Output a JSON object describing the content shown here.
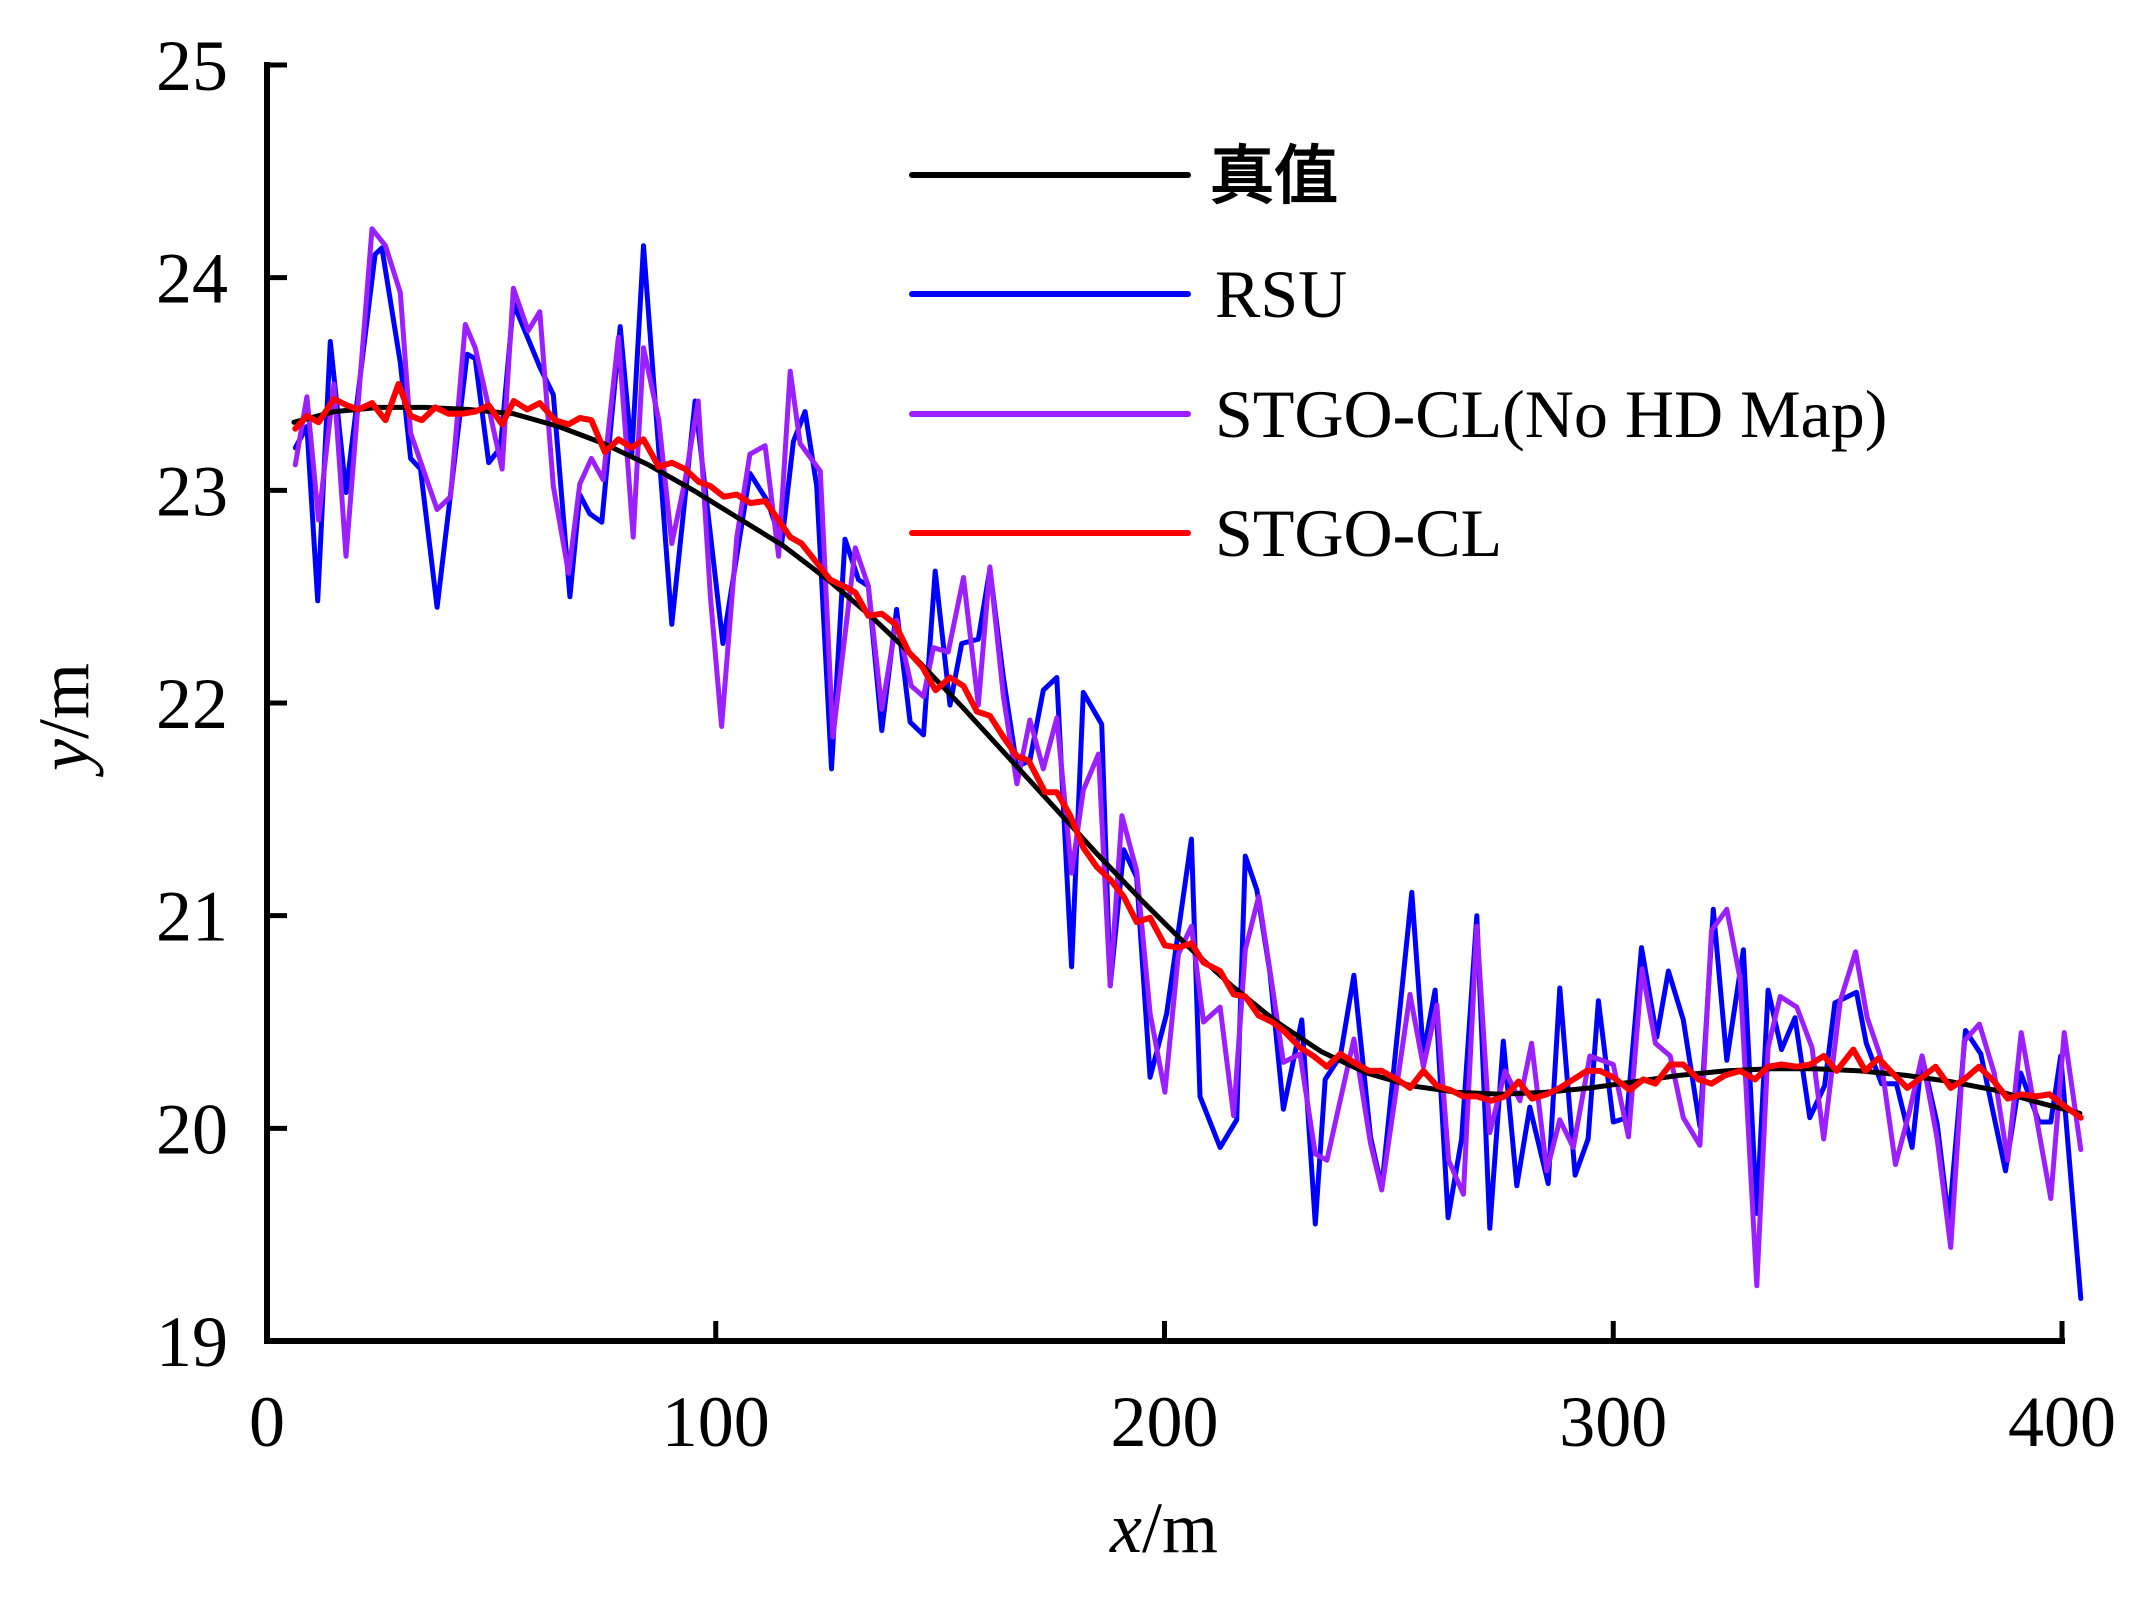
{
  "chart_data": {
    "type": "line",
    "title": "",
    "xlabel": {
      "var": "x",
      "unit": "/m"
    },
    "ylabel": {
      "var": "y",
      "unit": "/m"
    },
    "xlim": [
      0,
      400
    ],
    "ylim": [
      19,
      25
    ],
    "xticks": [
      "0",
      "100",
      "200",
      "300",
      "400"
    ],
    "xtick_values": [
      0,
      100,
      200,
      300,
      400
    ],
    "yticks": [
      "19",
      "20",
      "21",
      "22",
      "23",
      "24",
      "25"
    ],
    "ytick_values": [
      19,
      20,
      21,
      22,
      23,
      24,
      25
    ],
    "grid": false,
    "legend_position": "top-right",
    "legend": [
      "真值",
      "RSU",
      "STGO-CL(No HD Map)",
      "STGO-CL"
    ],
    "series": [
      {
        "name": "真值",
        "color": "#000000",
        "x": [
          6,
          15,
          25,
          35,
          45,
          55,
          65,
          75,
          85,
          95,
          105,
          115,
          125,
          135,
          145,
          155,
          165,
          175,
          185,
          195,
          205,
          215,
          225,
          235,
          245,
          255,
          265,
          275,
          285,
          295,
          305,
          315,
          325,
          335,
          345,
          355,
          365,
          375,
          385,
          395,
          404
        ],
        "y": [
          23.32,
          23.37,
          23.39,
          23.39,
          23.38,
          23.36,
          23.3,
          23.22,
          23.12,
          23.0,
          22.87,
          22.74,
          22.58,
          22.4,
          22.2,
          21.98,
          21.75,
          21.52,
          21.29,
          21.07,
          20.86,
          20.67,
          20.5,
          20.36,
          20.26,
          20.2,
          20.17,
          20.16,
          20.17,
          20.19,
          20.22,
          20.25,
          20.27,
          20.28,
          20.28,
          20.27,
          20.25,
          20.22,
          20.18,
          20.12,
          20.07
        ]
      },
      {
        "name": "RSU",
        "color": "#0000ff",
        "x": [
          6.3,
          8.9,
          11.3,
          14.1,
          17.6,
          24.1,
          25.6,
          29.7,
          32,
          34.2,
          37.9,
          40.9,
          44.6,
          46.4,
          49.4,
          52,
          54.9,
          60.8,
          63.8,
          67.5,
          69.7,
          71.9,
          74.6,
          78.7,
          81.3,
          83.9,
          90.2,
          95.4,
          101.6,
          107.6,
          111.5,
          114.7,
          117.3,
          119.9,
          122.5,
          125.8,
          128.8,
          131.8,
          134,
          137,
          140.3,
          143.3,
          146.3,
          148.9,
          152.2,
          154.8,
          158.5,
          161.1,
          164.1,
          167.1,
          170,
          173,
          176,
          179.3,
          181.9,
          186,
          187.9,
          190.9,
          193.8,
          196.8,
          200.5,
          206,
          207.9,
          212.4,
          216.1,
          218,
          220.6,
          223.5,
          226.5,
          230.6,
          233.6,
          235.8,
          239.2,
          242.2,
          245.9,
          248.4,
          255.1,
          257.7,
          260.3,
          263.2,
          266.2,
          269.6,
          272.5,
          275.5,
          278.5,
          281.4,
          285.5,
          288.1,
          291.5,
          294.4,
          296.7,
          300,
          303,
          306.3,
          309.7,
          312.3,
          315.6,
          319.3,
          322.3,
          325.3,
          329,
          332,
          334.5,
          337.5,
          340.5,
          343.8,
          347.1,
          349.4,
          354.2,
          356.4,
          359.8,
          363.1,
          366.6,
          368.8,
          372.2,
          374.8,
          378.5,
          381.9,
          387.4,
          390.8,
          394.9,
          397.5,
          399.7,
          404.2
        ],
        "y": [
          23.2,
          23.3,
          22.48,
          23.7,
          22.99,
          24.11,
          24.14,
          23.6,
          23.15,
          23.1,
          22.45,
          22.98,
          23.64,
          23.62,
          23.13,
          23.2,
          23.88,
          23.58,
          23.45,
          22.5,
          22.98,
          22.89,
          22.85,
          23.77,
          23.17,
          24.15,
          22.37,
          23.42,
          22.28,
          23.08,
          22.95,
          22.75,
          23.23,
          23.37,
          23.02,
          21.69,
          22.77,
          22.58,
          22.55,
          21.87,
          22.44,
          21.91,
          21.85,
          22.62,
          21.99,
          22.28,
          22.3,
          22.63,
          22.12,
          21.7,
          21.73,
          22.06,
          22.12,
          20.76,
          22.05,
          21.9,
          20.67,
          21.31,
          21.18,
          20.24,
          20.54,
          21.36,
          20.15,
          19.91,
          20.04,
          21.28,
          21.12,
          20.73,
          20.09,
          20.51,
          19.55,
          20.23,
          20.34,
          20.72,
          19.96,
          19.72,
          21.11,
          20.35,
          20.65,
          19.58,
          19.95,
          21.0,
          19.53,
          20.41,
          19.73,
          20.1,
          19.74,
          20.66,
          19.78,
          19.95,
          20.6,
          20.03,
          20.05,
          20.85,
          20.43,
          20.74,
          20.51,
          20.01,
          21.03,
          20.32,
          20.84,
          19.6,
          20.65,
          20.37,
          20.52,
          20.05,
          20.2,
          20.59,
          20.64,
          20.4,
          20.21,
          20.21,
          19.91,
          20.34,
          20.02,
          19.56,
          20.46,
          20.35,
          19.8,
          20.26,
          20.03,
          20.03,
          20.34,
          19.2
        ]
      },
      {
        "name": "STGO-CL(No HD Map)",
        "color": "#9b1fff",
        "x": [
          6.3,
          8.9,
          11.5,
          14.9,
          17.6,
          23.4,
          26.4,
          29.7,
          32,
          37.9,
          40.9,
          44.2,
          46.4,
          49.4,
          52.4,
          54.9,
          58.2,
          60.8,
          63.8,
          67.2,
          69.7,
          72.3,
          74.9,
          78.3,
          81.6,
          83.9,
          87.3,
          90.2,
          93.2,
          96.1,
          98.8,
          101.3,
          104.7,
          107.6,
          111,
          114,
          116.6,
          118.8,
          123.3,
          126.1,
          131.1,
          134,
          137,
          140.3,
          143.6,
          146.3,
          148.5,
          151.8,
          155.2,
          158.5,
          161.1,
          164.1,
          167.1,
          170,
          173,
          176,
          179.3,
          181.9,
          185.3,
          187.9,
          190.5,
          193.8,
          196.8,
          200.1,
          203.1,
          206,
          208.7,
          212.4,
          215.4,
          218,
          221,
          224,
          226.5,
          230.2,
          233.6,
          236.2,
          242.2,
          245.9,
          248.4,
          254.7,
          257.7,
          260.7,
          263.3,
          266.6,
          269.6,
          272.5,
          275.9,
          279.2,
          281.8,
          285.2,
          288.1,
          291.1,
          294.8,
          300,
          303.4,
          306.4,
          309.4,
          312.7,
          315.6,
          319.3,
          321.9,
          325.3,
          328.3,
          332,
          334.5,
          337.2,
          340.9,
          344.3,
          346.9,
          350.6,
          354,
          356.6,
          359.5,
          362.9,
          365.9,
          368.8,
          372.2,
          375.2,
          378.2,
          381.6,
          384.9,
          387.9,
          390.9,
          394.2,
          397.5,
          400.5,
          404.2
        ],
        "y": [
          23.12,
          23.44,
          22.86,
          23.5,
          22.69,
          24.23,
          24.15,
          23.93,
          23.27,
          22.91,
          22.97,
          23.78,
          23.67,
          23.39,
          23.1,
          23.95,
          23.75,
          23.84,
          23.02,
          22.61,
          23.03,
          23.15,
          23.05,
          23.72,
          22.78,
          23.67,
          23.33,
          22.75,
          23.05,
          23.42,
          22.5,
          21.89,
          22.78,
          23.17,
          23.21,
          22.69,
          23.56,
          23.22,
          23.09,
          21.84,
          22.73,
          22.55,
          21.97,
          22.39,
          22.08,
          22.03,
          22.26,
          22.24,
          22.59,
          21.99,
          22.64,
          22.03,
          21.62,
          21.92,
          21.69,
          21.93,
          21.2,
          21.59,
          21.76,
          20.67,
          21.47,
          21.21,
          20.54,
          20.17,
          20.82,
          20.95,
          20.5,
          20.57,
          20.06,
          20.84,
          21.09,
          20.67,
          20.31,
          20.35,
          19.88,
          19.85,
          20.42,
          19.93,
          19.71,
          20.63,
          20.29,
          20.58,
          19.85,
          19.69,
          20.95,
          19.98,
          20.27,
          20.13,
          20.4,
          19.8,
          20.04,
          19.91,
          20.34,
          20.3,
          19.96,
          20.75,
          20.4,
          20.34,
          20.05,
          19.92,
          20.93,
          21.03,
          20.7,
          19.26,
          20.38,
          20.62,
          20.57,
          20.38,
          19.95,
          20.6,
          20.83,
          20.52,
          20.34,
          19.83,
          20.07,
          20.34,
          19.95,
          19.44,
          20.41,
          20.49,
          20.26,
          19.85,
          20.45,
          20.06,
          19.67,
          20.45,
          19.9
        ]
      },
      {
        "name": "STGO-CL",
        "color": "#ff0000",
        "x": [
          6.3,
          8.9,
          11.5,
          14.9,
          17.8,
          20.4,
          23.4,
          26.4,
          29.3,
          32,
          34.5,
          37.5,
          40.5,
          43.5,
          46.4,
          49.4,
          52.4,
          55,
          58,
          60.8,
          64.2,
          67.2,
          69.7,
          72.3,
          75.3,
          78.3,
          81.3,
          83.9,
          87.3,
          90.2,
          93.2,
          96.2,
          98.8,
          101.8,
          104.7,
          107.7,
          111,
          114,
          116.6,
          119.1,
          122.5,
          125.5,
          128.5,
          131.1,
          134,
          137,
          140,
          143,
          146,
          149,
          152.2,
          155.2,
          158.2,
          161.1,
          164.1,
          167.1,
          169.7,
          173.4,
          176,
          179,
          181.9,
          184.9,
          187.9,
          190.9,
          193.8,
          196.8,
          200.1,
          203.1,
          206,
          208.7,
          212.4,
          215.4,
          218,
          221,
          224,
          226.5,
          230.2,
          233.2,
          236.2,
          239.2,
          242.2,
          245.6,
          248.4,
          251.8,
          254.7,
          257.7,
          260.7,
          263.7,
          266.6,
          269.6,
          272.9,
          275.9,
          278.9,
          281.9,
          285.2,
          288.1,
          291.1,
          294.1,
          297.1,
          300,
          303.7,
          306.7,
          309.4,
          312.7,
          315.6,
          319,
          321.9,
          325,
          328.3,
          331.6,
          334.5,
          337.5,
          340.9,
          343.9,
          346.9,
          349.8,
          353.5,
          356.2,
          359.1,
          362.2,
          365.5,
          368.8,
          371.8,
          375.2,
          378.2,
          381.5,
          384.9,
          387.9,
          390.9,
          394.2,
          397.2,
          400.2,
          404.2
        ],
        "y": [
          23.29,
          23.35,
          23.32,
          23.43,
          23.4,
          23.38,
          23.41,
          23.33,
          23.5,
          23.35,
          23.33,
          23.39,
          23.36,
          23.36,
          23.37,
          23.4,
          23.31,
          23.42,
          23.38,
          23.41,
          23.33,
          23.31,
          23.34,
          23.33,
          23.18,
          23.24,
          23.2,
          23.24,
          23.11,
          23.13,
          23.1,
          23.04,
          23.02,
          22.97,
          22.98,
          22.94,
          22.95,
          22.86,
          22.78,
          22.75,
          22.66,
          22.58,
          22.55,
          22.52,
          22.41,
          22.42,
          22.37,
          22.24,
          22.17,
          22.06,
          22.12,
          22.08,
          21.96,
          21.94,
          21.84,
          21.75,
          21.73,
          21.58,
          21.58,
          21.47,
          21.32,
          21.23,
          21.17,
          21.09,
          20.97,
          20.99,
          20.86,
          20.85,
          20.87,
          20.78,
          20.74,
          20.63,
          20.62,
          20.53,
          20.5,
          20.46,
          20.38,
          20.34,
          20.29,
          20.35,
          20.31,
          20.27,
          20.27,
          20.23,
          20.19,
          20.27,
          20.2,
          20.18,
          20.15,
          20.15,
          20.13,
          20.15,
          20.22,
          20.14,
          20.16,
          20.19,
          20.23,
          20.27,
          20.27,
          20.24,
          20.18,
          20.23,
          20.21,
          20.3,
          20.3,
          20.23,
          20.21,
          20.25,
          20.27,
          20.23,
          20.29,
          20.3,
          20.29,
          20.3,
          20.34,
          20.27,
          20.37,
          20.27,
          20.33,
          20.26,
          20.19,
          20.24,
          20.29,
          20.19,
          20.23,
          20.29,
          20.22,
          20.14,
          20.16,
          20.15,
          20.16,
          20.11,
          20.05
        ]
      }
    ]
  }
}
